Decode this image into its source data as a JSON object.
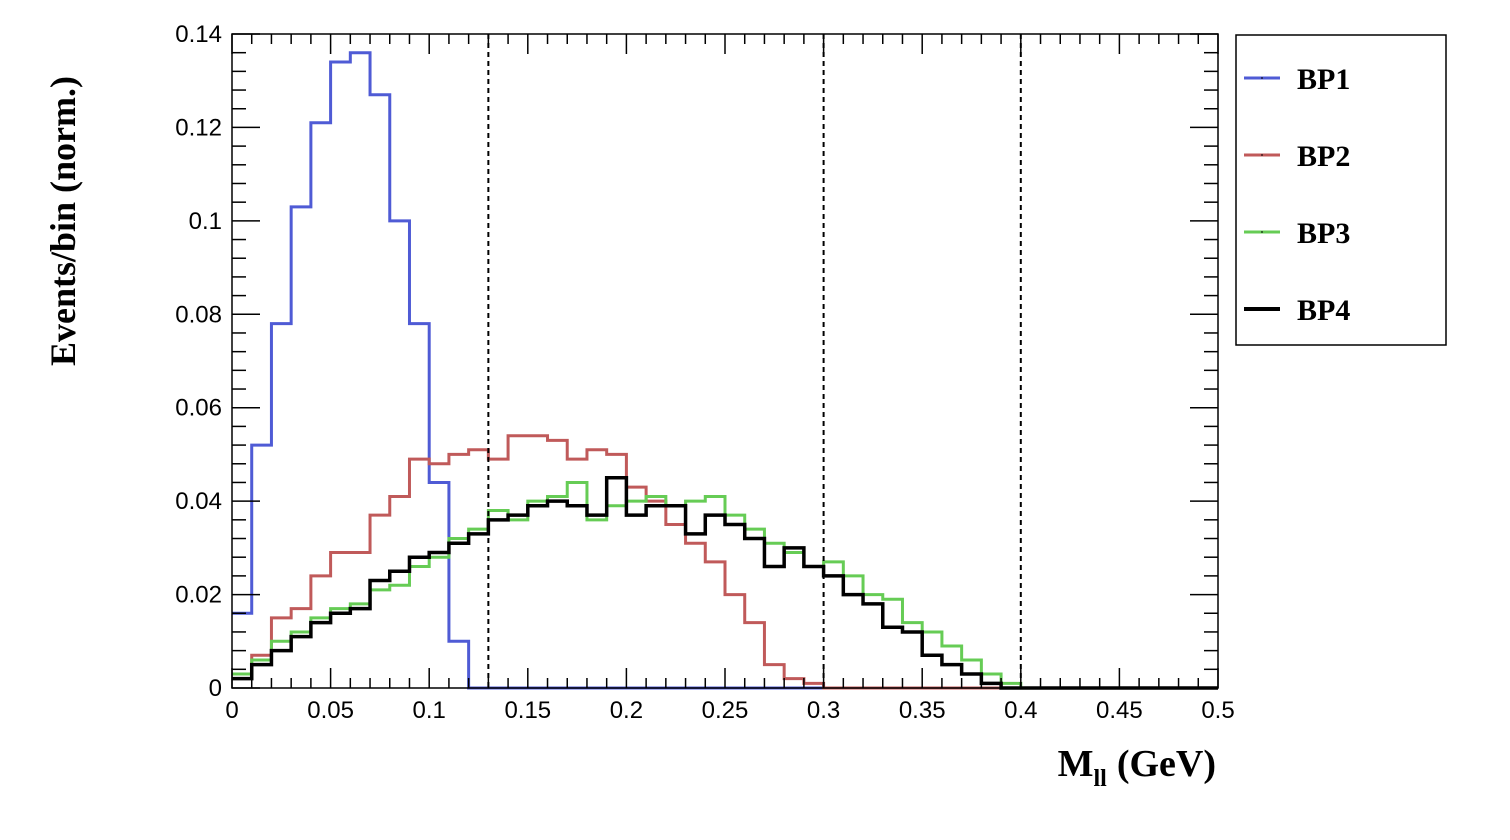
{
  "chart_data": {
    "type": "histogram-step",
    "xlabel": "M",
    "xlabel_subscript": "ll",
    "xlabel_unit": "(GeV)",
    "ylabel": "Events/bin (norm.)",
    "xlim": [
      0,
      0.5
    ],
    "ylim": [
      0,
      0.14
    ],
    "x_ticks": [
      0,
      0.05,
      0.1,
      0.15,
      0.2,
      0.25,
      0.3,
      0.35,
      0.4,
      0.45,
      0.5
    ],
    "x_tick_labels": [
      "0",
      "0.05",
      "0.1",
      "0.15",
      "0.2",
      "0.25",
      "0.3",
      "0.35",
      "0.4",
      "0.45",
      "0.5"
    ],
    "y_ticks": [
      0,
      0.02,
      0.04,
      0.06,
      0.08,
      0.1,
      0.12,
      0.14
    ],
    "y_tick_labels": [
      "0",
      "0.02",
      "0.04",
      "0.06",
      "0.08",
      "0.1",
      "0.12",
      "0.14"
    ],
    "bin_width": 0.01,
    "vertical_lines": [
      0.13,
      0.3,
      0.4
    ],
    "legend_position": "top-right outside",
    "grid": false,
    "series": [
      {
        "name": "BP1",
        "color": "#4f5bd5",
        "values": [
          0.016,
          0.052,
          0.078,
          0.103,
          0.121,
          0.134,
          0.136,
          0.127,
          0.1,
          0.078,
          0.044,
          0.01,
          0.0,
          0.0,
          0.0,
          0.0,
          0.0,
          0.0,
          0.0,
          0.0,
          0.0,
          0.0,
          0.0,
          0.0,
          0.0,
          0.0,
          0.0,
          0.0,
          0.0,
          0.0,
          0.0,
          0.0,
          0.0,
          0.0,
          0.0,
          0.0,
          0.0,
          0.0,
          0.0,
          0.0,
          0.0,
          0.0,
          0.0,
          0.0,
          0.0,
          0.0,
          0.0,
          0.0,
          0.0,
          0.0
        ]
      },
      {
        "name": "BP2",
        "color": "#c05a5a",
        "values": [
          0.003,
          0.007,
          0.015,
          0.017,
          0.024,
          0.029,
          0.029,
          0.037,
          0.041,
          0.049,
          0.048,
          0.05,
          0.051,
          0.049,
          0.054,
          0.054,
          0.053,
          0.049,
          0.051,
          0.05,
          0.043,
          0.04,
          0.035,
          0.031,
          0.027,
          0.02,
          0.014,
          0.005,
          0.002,
          0.001,
          0.0,
          0.0,
          0.0,
          0.0,
          0.0,
          0.0,
          0.0,
          0.0,
          0.0,
          0.0,
          0.0,
          0.0,
          0.0,
          0.0,
          0.0,
          0.0,
          0.0,
          0.0,
          0.0,
          0.0
        ]
      },
      {
        "name": "BP3",
        "color": "#66cc55",
        "values": [
          0.003,
          0.006,
          0.01,
          0.012,
          0.015,
          0.017,
          0.018,
          0.021,
          0.022,
          0.026,
          0.028,
          0.032,
          0.034,
          0.038,
          0.036,
          0.04,
          0.041,
          0.044,
          0.036,
          0.039,
          0.04,
          0.041,
          0.039,
          0.04,
          0.041,
          0.037,
          0.034,
          0.031,
          0.029,
          0.026,
          0.027,
          0.024,
          0.02,
          0.019,
          0.014,
          0.012,
          0.009,
          0.006,
          0.003,
          0.001,
          0.0,
          0.0,
          0.0,
          0.0,
          0.0,
          0.0,
          0.0,
          0.0,
          0.0,
          0.0
        ]
      },
      {
        "name": "BP4",
        "color": "#000000",
        "values": [
          0.002,
          0.005,
          0.008,
          0.011,
          0.014,
          0.016,
          0.017,
          0.023,
          0.025,
          0.028,
          0.029,
          0.031,
          0.033,
          0.036,
          0.037,
          0.039,
          0.04,
          0.039,
          0.037,
          0.045,
          0.037,
          0.039,
          0.039,
          0.033,
          0.037,
          0.035,
          0.032,
          0.026,
          0.03,
          0.026,
          0.024,
          0.02,
          0.018,
          0.013,
          0.012,
          0.007,
          0.005,
          0.003,
          0.001,
          0.0,
          0.0,
          0.0,
          0.0,
          0.0,
          0.0,
          0.0,
          0.0,
          0.0,
          0.0,
          0.0
        ]
      }
    ]
  }
}
